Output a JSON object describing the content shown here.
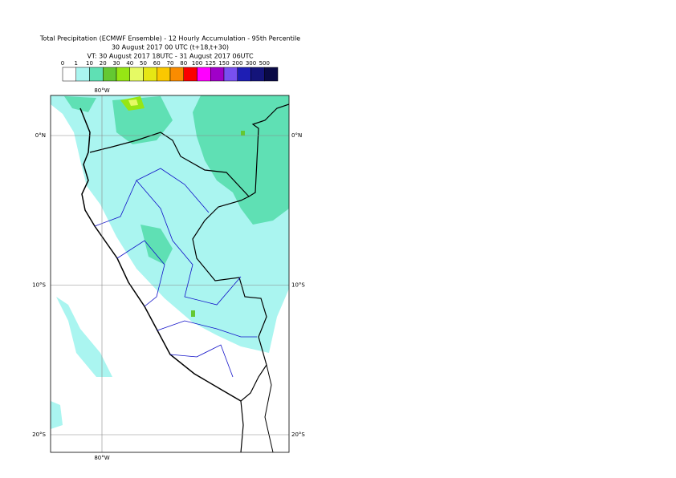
{
  "header": {
    "title_lines": [
      "Total Precipitation (ECMWF Ensemble) - 12 Hourly Accumulation - 95th Percentile",
      "30 August 2017 00 UTC (t+18,t+30)",
      "VT: 30 August 2017 18UTC - 31 August 2017 06UTC"
    ]
  },
  "legend": {
    "labels": [
      "0",
      "1",
      "10",
      "20",
      "30",
      "40",
      "50",
      "60",
      "70",
      "80",
      "100",
      "125",
      "150",
      "200",
      "300",
      "500"
    ],
    "colors": [
      "#ffffff",
      "#aaf5f0",
      "#5fe0b4",
      "#64c832",
      "#96e614",
      "#e6fa64",
      "#e6e614",
      "#fac800",
      "#fa8c00",
      "#fa0000",
      "#ff00ff",
      "#a000c8",
      "#7850f0",
      "#1e1eb4",
      "#14147a",
      "#0a0a46"
    ]
  },
  "grid": {
    "lon": [
      {
        "value": -80,
        "label": "80°W"
      }
    ],
    "lat": [
      {
        "value": 0,
        "label": "0°N"
      },
      {
        "value": -10,
        "label": "10°S"
      },
      {
        "value": -20,
        "label": "20°S"
      }
    ]
  }
}
